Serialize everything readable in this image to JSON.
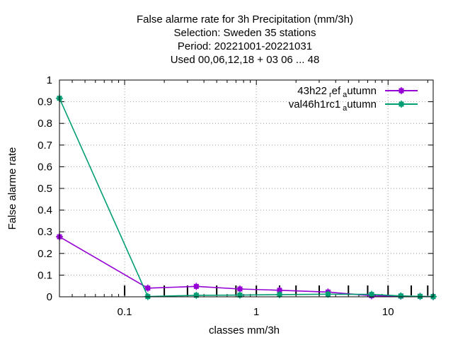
{
  "chart_data": {
    "type": "line",
    "title_lines": [
      "False alarme rate  for 3h Precipitation (mm/3h)",
      "Selection: Sweden     35 stations",
      "Period: 20221001-20221031",
      "Used  00,06,12,18  + 03 06 ... 48"
    ],
    "xlabel": "classes mm/3h",
    "ylabel": "False alarme rate",
    "x_scale": "log",
    "xlim": [
      0.032,
      22
    ],
    "ylim": [
      0,
      1
    ],
    "grid": true,
    "legend_position": "top-right",
    "x_ticks": [
      {
        "value": 0.1,
        "label": "0.1"
      },
      {
        "value": 1,
        "label": "1"
      },
      {
        "value": 10,
        "label": "10"
      }
    ],
    "y_ticks": [
      {
        "value": 0,
        "label": "0"
      },
      {
        "value": 0.1,
        "label": "0.1"
      },
      {
        "value": 0.2,
        "label": "0.2"
      },
      {
        "value": 0.3,
        "label": "0.3"
      },
      {
        "value": 0.4,
        "label": "0.4"
      },
      {
        "value": 0.5,
        "label": "0.5"
      },
      {
        "value": 0.6,
        "label": "0.6"
      },
      {
        "value": 0.7,
        "label": "0.7"
      },
      {
        "value": 0.8,
        "label": "0.8"
      },
      {
        "value": 0.9,
        "label": "0.9"
      },
      {
        "value": 1,
        "label": "1"
      }
    ],
    "threshold_marks": [
      0.1,
      0.2,
      0.3,
      0.5,
      0.7,
      1,
      1.5,
      2,
      3,
      5,
      7,
      10,
      15,
      20
    ],
    "series": [
      {
        "name": "43h22 ref autumn",
        "legend_main": "43h22",
        "legend_sub": "r",
        "legend_mid": "ef",
        "legend_sub2": "a",
        "legend_end": "utumn",
        "color": "#9400d3",
        "x": [
          0.032,
          0.15,
          0.35,
          0.75,
          1.5,
          3.5,
          7.5,
          12.5,
          17.5,
          22
        ],
        "y": [
          0.277,
          0.04,
          0.048,
          0.036,
          0.03,
          0.022,
          0.005,
          0.003,
          0.002,
          0.001
        ]
      },
      {
        "name": "val46h1rc1 autumn",
        "legend_main": "val46h1rc1",
        "legend_sub": "a",
        "legend_end": "utumn",
        "color": "#009e73",
        "x": [
          0.032,
          0.15,
          0.35,
          0.75,
          1.5,
          3.5,
          7.5,
          12.5,
          17.5,
          22
        ],
        "y": [
          0.916,
          0.001,
          0.007,
          0.008,
          0.01,
          0.012,
          0.011,
          0.004,
          0.002,
          0.001
        ]
      }
    ]
  }
}
